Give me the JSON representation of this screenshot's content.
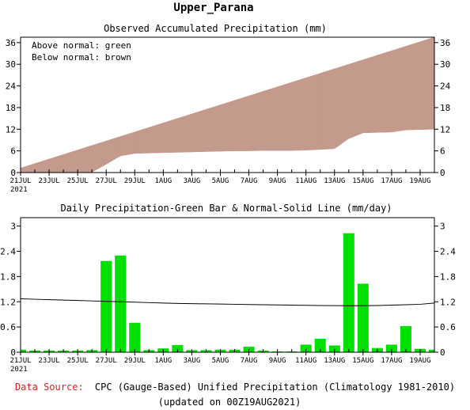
{
  "page_title": "Upper_Parana",
  "footer": {
    "source_label": "Data Source:",
    "source_text": "CPC (Gauge-Based) Unified Precipitation (Climatology 1981-2010)",
    "updated": "(updated on 00Z19AUG2021)"
  },
  "colors": {
    "above_normal": "#00dd00",
    "below_normal": "#c49a8c",
    "bar": "#00e000",
    "normal_line": "#000000",
    "source_label": "#e02020"
  },
  "chart_data": [
    {
      "type": "area",
      "title": "Observed Accumulated Precipitation (mm)",
      "legend": [
        "Above normal: green",
        "Below normal: brown"
      ],
      "legend_placement": "top-left",
      "x_tick_labels": [
        "21JUL",
        "23JUL",
        "25JUL",
        "27JUL",
        "29JUL",
        "1AUG",
        "3AUG",
        "5AUG",
        "7AUG",
        "9AUG",
        "11AUG",
        "13AUG",
        "15AUG",
        "17AUG",
        "19AUG"
      ],
      "x_year_label": "2021",
      "y_ticks": [
        0,
        6,
        12,
        18,
        24,
        30,
        36
      ],
      "ylim": [
        0,
        37.5
      ],
      "days": [
        "21JUL",
        "22JUL",
        "23JUL",
        "24JUL",
        "25JUL",
        "26JUL",
        "27JUL",
        "28JUL",
        "29JUL",
        "30JUL",
        "31JUL",
        "1AUG",
        "2AUG",
        "3AUG",
        "4AUG",
        "5AUG",
        "6AUG",
        "7AUG",
        "8AUG",
        "9AUG",
        "10AUG",
        "11AUG",
        "12AUG",
        "13AUG",
        "14AUG",
        "15AUG",
        "16AUG",
        "17AUG",
        "18AUG",
        "19AUG"
      ],
      "series": [
        {
          "name": "Observed",
          "values": [
            0,
            0,
            0,
            0,
            0,
            0.1,
            2.3,
            4.6,
            5.3,
            5.4,
            5.5,
            5.6,
            5.7,
            5.8,
            5.9,
            6.0,
            6.0,
            6.1,
            6.1,
            6.1,
            6.2,
            6.4,
            6.6,
            9.4,
            11.0,
            11.1,
            11.2,
            11.8,
            11.9,
            12.0
          ]
        },
        {
          "name": "Normal",
          "values": [
            1.25,
            2.5,
            3.75,
            5.0,
            6.25,
            7.5,
            8.75,
            10.0,
            11.25,
            12.5,
            13.75,
            15.0,
            16.25,
            17.5,
            18.75,
            20.0,
            21.25,
            22.5,
            23.75,
            25.0,
            26.25,
            27.5,
            28.75,
            30.0,
            31.25,
            32.5,
            33.75,
            35.0,
            36.25,
            37.5
          ]
        }
      ]
    },
    {
      "type": "bar",
      "title": "Daily Precipitation-Green Bar & Normal-Solid Line (mm/day)",
      "x_tick_labels": [
        "21JUL",
        "23JUL",
        "25JUL",
        "27JUL",
        "29JUL",
        "1AUG",
        "3AUG",
        "5AUG",
        "7AUG",
        "9AUG",
        "11AUG",
        "13AUG",
        "15AUG",
        "17AUG",
        "19AUG"
      ],
      "x_year_label": "2021",
      "y_ticks": [
        0,
        0.6,
        1.2,
        1.8,
        2.4,
        3
      ],
      "y_tick_labels": [
        "0",
        "0.6",
        "1.2",
        "1.8",
        "2.4",
        "3"
      ],
      "ylim": [
        0,
        3.2
      ],
      "days": [
        "21JUL",
        "22JUL",
        "23JUL",
        "24JUL",
        "25JUL",
        "26JUL",
        "27JUL",
        "28JUL",
        "29JUL",
        "30JUL",
        "31JUL",
        "1AUG",
        "2AUG",
        "3AUG",
        "4AUG",
        "5AUG",
        "6AUG",
        "7AUG",
        "8AUG",
        "9AUG",
        "10AUG",
        "11AUG",
        "12AUG",
        "13AUG",
        "14AUG",
        "15AUG",
        "16AUG",
        "17AUG",
        "18AUG",
        "19AUG"
      ],
      "series": [
        {
          "name": "Daily Precipitation",
          "values": [
            0.06,
            0.04,
            0.04,
            0.04,
            0.04,
            0.05,
            2.17,
            2.3,
            0.7,
            0.05,
            0.09,
            0.17,
            0.05,
            0.05,
            0.06,
            0.06,
            0.13,
            0.04,
            0.02,
            0.02,
            0.18,
            0.32,
            0.16,
            2.83,
            1.63,
            0.1,
            0.18,
            0.62,
            0.08,
            0.06
          ]
        },
        {
          "name": "Normal",
          "values": [
            1.27,
            1.26,
            1.25,
            1.24,
            1.23,
            1.22,
            1.21,
            1.2,
            1.19,
            1.18,
            1.17,
            1.16,
            1.155,
            1.15,
            1.145,
            1.14,
            1.135,
            1.13,
            1.125,
            1.12,
            1.115,
            1.11,
            1.108,
            1.105,
            1.105,
            1.11,
            1.12,
            1.13,
            1.14,
            1.17
          ]
        }
      ]
    }
  ]
}
